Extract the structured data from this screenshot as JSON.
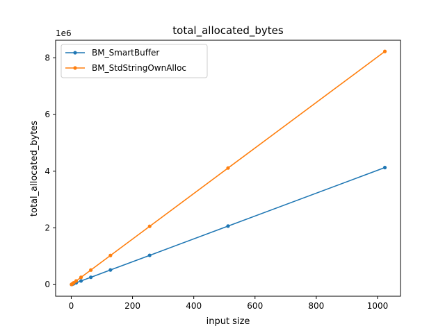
{
  "chart_data": {
    "type": "line",
    "title": "total_allocated_bytes",
    "xlabel": "input size",
    "ylabel": "total_allocated_bytes",
    "y_offset_label": "1e6",
    "y_scale_factor": 1000000,
    "xlim": [
      -51,
      1075
    ],
    "ylim": [
      -410000,
      8620000
    ],
    "x_ticks": [
      0,
      200,
      400,
      600,
      800,
      1000
    ],
    "x_tick_labels": [
      "0",
      "200",
      "400",
      "600",
      "800",
      "1000"
    ],
    "y_ticks": [
      0,
      2000000,
      4000000,
      6000000,
      8000000
    ],
    "y_tick_labels": [
      "0",
      "2",
      "4",
      "6",
      "8"
    ],
    "grid": false,
    "legend_position": "top-left",
    "series": [
      {
        "name": "BM_SmartBuffer",
        "color": "#1f77b4",
        "x": [
          1,
          2,
          4,
          8,
          16,
          32,
          64,
          128,
          256,
          512,
          1024
        ],
        "y": [
          4032,
          8064,
          16128,
          32256,
          64512,
          129024,
          258048,
          516096,
          1032192,
          2064384,
          4128768
        ]
      },
      {
        "name": "BM_StdStringOwnAlloc",
        "color": "#ff7f0e",
        "x": [
          1,
          2,
          4,
          8,
          16,
          32,
          64,
          128,
          256,
          512,
          1024
        ],
        "y": [
          8032,
          16064,
          32128,
          64256,
          128512,
          257024,
          514048,
          1028096,
          2056192,
          4112384,
          8224768
        ]
      }
    ]
  }
}
